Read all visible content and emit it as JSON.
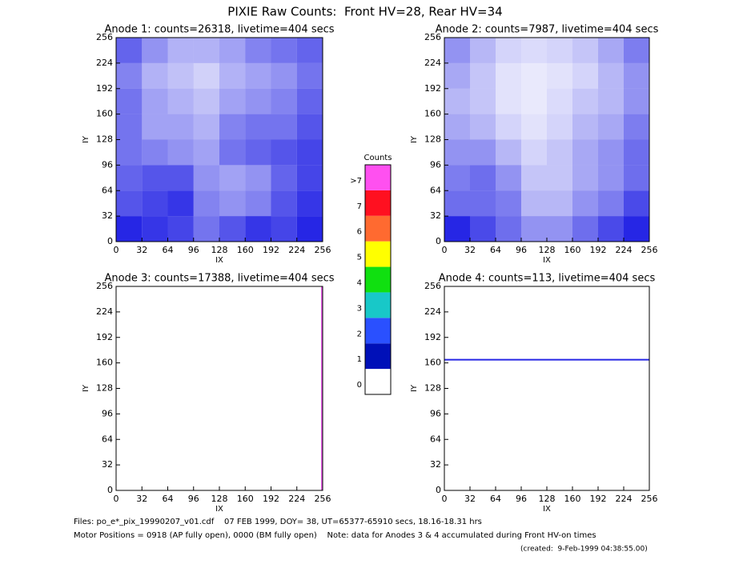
{
  "title": "PIXIE Raw Counts:  Front HV=28, Rear HV=34",
  "footer": [
    "Files: po_e*_pix_19990207_v01.cdf    07 FEB 1999, DOY= 38, UT=65377-65910 secs, 18.16-18.31 hrs",
    "Motor Positions = 0918 (AP fully open), 0000 (BM fully open)    Note: data for Anodes 3 & 4 accumulated during Front HV-on times",
    "(created:  9-Feb-1999 04:38:55.00)"
  ],
  "colorbar": {
    "title": "Counts",
    "labels": [
      "0",
      "1",
      "2",
      "3",
      "4",
      "5",
      "6",
      "7",
      ">7"
    ],
    "colors": [
      "#ffffff",
      "#0010b8",
      "#2a50ff",
      "#18c8c8",
      "#10e010",
      "#ffff00",
      "#ff6a30",
      "#ff1020",
      "#ff50f0"
    ]
  },
  "chart_data": [
    {
      "type": "heatmap",
      "title": "Anode 1: counts=26318, livetime=404 secs",
      "xlabel": "IX",
      "ylabel": "IY",
      "xlim": [
        0,
        256
      ],
      "ylim": [
        0,
        256
      ],
      "xticks": [
        0,
        32,
        64,
        96,
        128,
        160,
        192,
        224,
        256
      ],
      "yticks": [
        0,
        32,
        64,
        96,
        128,
        160,
        192,
        224,
        256
      ],
      "color": "#0000e0",
      "xbins": [
        0,
        32,
        64,
        96,
        128,
        160,
        192,
        224,
        256
      ],
      "ybins": [
        0,
        32,
        64,
        96,
        128,
        160,
        192,
        224,
        256
      ],
      "z": [
        [
          700,
          650,
          600,
          450,
          550,
          650,
          600,
          700
        ],
        [
          550,
          600,
          650,
          400,
          350,
          400,
          550,
          650
        ],
        [
          500,
          550,
          550,
          350,
          300,
          350,
          500,
          600
        ],
        [
          450,
          400,
          350,
          300,
          450,
          500,
          550,
          600
        ],
        [
          450,
          300,
          300,
          250,
          400,
          450,
          450,
          550
        ],
        [
          450,
          300,
          250,
          200,
          300,
          350,
          400,
          500
        ],
        [
          400,
          250,
          200,
          150,
          250,
          300,
          350,
          450
        ],
        [
          500,
          350,
          250,
          250,
          300,
          400,
          450,
          500
        ]
      ]
    },
    {
      "type": "heatmap",
      "title": "Anode 2: counts=7987, livetime=404 secs",
      "xlabel": "IX",
      "ylabel": "IY",
      "xlim": [
        0,
        256
      ],
      "ylim": [
        0,
        256
      ],
      "xticks": [
        0,
        32,
        64,
        96,
        128,
        160,
        192,
        224,
        256
      ],
      "yticks": [
        0,
        32,
        64,
        96,
        128,
        160,
        192,
        224,
        256
      ],
      "color": "#0000e0",
      "xbins": [
        0,
        32,
        64,
        96,
        128,
        160,
        192,
        224,
        256
      ],
      "ybins": [
        0,
        32,
        64,
        96,
        128,
        160,
        192,
        224,
        256
      ],
      "z": [
        [
          300,
          250,
          200,
          150,
          150,
          200,
          250,
          300
        ],
        [
          200,
          200,
          180,
          100,
          100,
          150,
          180,
          250
        ],
        [
          180,
          200,
          150,
          80,
          80,
          120,
          150,
          200
        ],
        [
          150,
          150,
          100,
          60,
          80,
          120,
          150,
          200
        ],
        [
          120,
          100,
          60,
          40,
          60,
          100,
          120,
          180
        ],
        [
          100,
          80,
          40,
          30,
          50,
          80,
          100,
          150
        ],
        [
          120,
          80,
          40,
          30,
          40,
          60,
          100,
          150
        ],
        [
          150,
          100,
          60,
          50,
          60,
          80,
          120,
          180
        ]
      ]
    },
    {
      "type": "heatmap",
      "title": "Anode 3: counts=17388, livetime=404 secs",
      "xlabel": "IX",
      "ylabel": "IY",
      "xlim": [
        0,
        256
      ],
      "ylim": [
        0,
        256
      ],
      "xticks": [
        0,
        32,
        64,
        96,
        128,
        160,
        192,
        224,
        256
      ],
      "yticks": [
        0,
        32,
        64,
        96,
        128,
        160,
        192,
        224,
        256
      ],
      "color": "#e040e0",
      "xbins": [
        0,
        254,
        256
      ],
      "ybins": [
        0,
        256
      ],
      "z": [
        [
          0,
          17388
        ]
      ]
    },
    {
      "type": "heatmap",
      "title": "Anode 4: counts=113, livetime=404 secs",
      "xlabel": "IX",
      "ylabel": "IY",
      "xlim": [
        0,
        256
      ],
      "ylim": [
        0,
        256
      ],
      "xticks": [
        0,
        32,
        64,
        96,
        128,
        160,
        192,
        224,
        256
      ],
      "yticks": [
        0,
        32,
        64,
        96,
        128,
        160,
        192,
        224,
        256
      ],
      "color": "#0000e0",
      "xbins": [
        0,
        256
      ],
      "ybins": [
        0,
        163,
        165,
        256
      ],
      "z": [
        [
          0
        ],
        [
          113
        ],
        [
          0
        ]
      ]
    }
  ]
}
